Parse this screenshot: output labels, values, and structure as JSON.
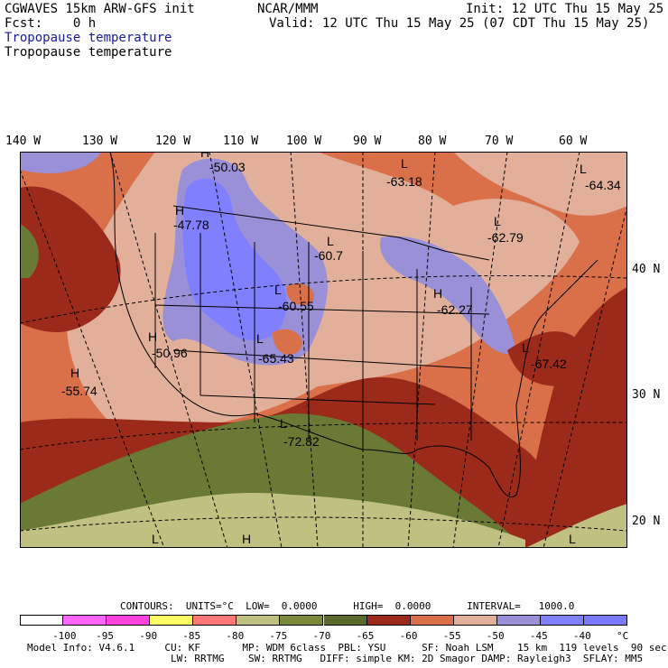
{
  "header": {
    "model_title": "CGWAVES 15km ARW-GFS init",
    "fcst_line": "Fcst:    0 h",
    "org": "NCAR/MMM",
    "init": "Init: 12 UTC Thu 15 May 25",
    "valid": "Valid: 12 UTC Thu 15 May 25 (07 CDT Thu 15 May 25)",
    "field_blue": "Tropopause temperature",
    "field_black": "Tropopause temperature"
  },
  "axes": {
    "lon_labels": [
      "140 W",
      "130 W",
      "120 W",
      "110 W",
      "100 W",
      "90 W",
      "80 W",
      "70 W",
      "60 W"
    ],
    "lat_labels": [
      "40 N",
      "30 N",
      "20 N"
    ]
  },
  "centers": [
    {
      "kind": "H",
      "value": "-50.03"
    },
    {
      "kind": "H",
      "value": "-47.78"
    },
    {
      "kind": "L",
      "value": "-63.18"
    },
    {
      "kind": "L",
      "value": "-64.34"
    },
    {
      "kind": "L",
      "value": "-62.79"
    },
    {
      "kind": "L",
      "value": "-60.7"
    },
    {
      "kind": "L",
      "value": "-60.55"
    },
    {
      "kind": "H",
      "value": "-62.27"
    },
    {
      "kind": "H",
      "value": "-50.96"
    },
    {
      "kind": "L",
      "value": "-65.43"
    },
    {
      "kind": "L",
      "value": "-67.42"
    },
    {
      "kind": "H",
      "value": "-55.74"
    },
    {
      "kind": "L",
      "value": "-72.82"
    },
    {
      "kind": "L",
      "value": ""
    },
    {
      "kind": "H",
      "value": ""
    },
    {
      "kind": "L",
      "value": ""
    }
  ],
  "contours_line": "CONTOURS:  UNITS=°C  LOW=  0.0000      HIGH=  0.0000      INTERVAL=   1000.0",
  "legend": {
    "colors": [
      "#ffffff",
      "#ff66ff",
      "#ff44dd",
      "#ffff66",
      "#ff7777",
      "#c0c080",
      "#7a8a3a",
      "#5a6a2a",
      "#9b2a1a",
      "#d9704a",
      "#e2b09a",
      "#9a90d8",
      "#8080ff",
      "#7a7aff"
    ],
    "ticks": [
      "-100",
      "-95",
      "-90",
      "-85",
      "-80",
      "-75",
      "-70",
      "-65",
      "-60",
      "-55",
      "-50",
      "-45",
      "-40",
      "°C"
    ]
  },
  "footer": {
    "line1": "Model Info: V4.6.1     CU: KF       MP: WDM 6class  PBL: YSU      SF: Noah LSM    15 km  119 levels  90 sec",
    "line2": "                        LW: RRTMG    SW: RRTMG   DIFF: simple KM: 2D Smagor DAMP: Rayleigh3  SFLAY: MM5"
  }
}
